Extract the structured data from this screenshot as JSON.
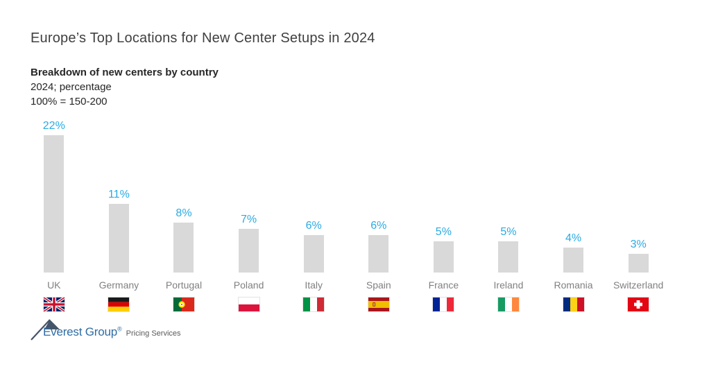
{
  "page": {
    "title": "Europe’s Top Locations for New Center Setups in 2024",
    "subtitle_bold": "Breakdown of new centers by country",
    "subtitle_line2": "2024; percentage",
    "subtitle_line3": "100% = 150-200"
  },
  "chart_data": {
    "type": "bar",
    "title": "Breakdown of new centers by country",
    "subtitle": "2024; percentage, 100% = 150-200",
    "categories": [
      "UK",
      "Germany",
      "Portugal",
      "Poland",
      "Italy",
      "Spain",
      "France",
      "Ireland",
      "Romania",
      "Switzerland"
    ],
    "values": [
      22,
      11,
      8,
      7,
      6,
      6,
      5,
      5,
      4,
      3
    ],
    "value_labels": [
      "22%",
      "11%",
      "8%",
      "7%",
      "6%",
      "6%",
      "5%",
      "5%",
      "4%",
      "3%"
    ],
    "ylim": [
      0,
      24
    ],
    "grid": "off",
    "legend": "none",
    "bar_color": "#D9D9D9",
    "value_label_color": "#29ABE2",
    "category_label_color": "#808080",
    "flags": [
      {
        "icon": "uk-flag",
        "type": "union-jack",
        "colors": {
          "field": "#012169",
          "cross": "#C8102E",
          "fimbriation": "#FFFFFF"
        }
      },
      {
        "icon": "germany-flag",
        "type": "h",
        "stripes": [
          "#1A1A1A",
          "#DD0000",
          "#FFCE00"
        ]
      },
      {
        "icon": "portugal-flag",
        "type": "portugal",
        "colors": {
          "hoist": "#046A38",
          "fly": "#DA291C",
          "emblem": "#FFE900",
          "inner": "#FFFFFF"
        }
      },
      {
        "icon": "poland-flag",
        "type": "h",
        "stripes": [
          "#FFFFFF",
          "#DC143C"
        ]
      },
      {
        "icon": "italy-flag",
        "type": "v",
        "stripes": [
          "#009246",
          "#FFFFFF",
          "#CE2B37"
        ]
      },
      {
        "icon": "spain-flag",
        "type": "spain",
        "colors": {
          "red": "#AA151B",
          "yellow": "#F1BF00",
          "emblem": "#C7A24A"
        }
      },
      {
        "icon": "france-flag",
        "type": "v",
        "stripes": [
          "#002395",
          "#FFFFFF",
          "#ED2939"
        ]
      },
      {
        "icon": "ireland-flag",
        "type": "v",
        "stripes": [
          "#169B62",
          "#FFFFFF",
          "#FF883E"
        ]
      },
      {
        "icon": "romania-flag",
        "type": "v",
        "stripes": [
          "#002B7F",
          "#FCD116",
          "#CE1126"
        ]
      },
      {
        "icon": "switzerland-flag",
        "type": "swiss",
        "colors": {
          "field": "#E30613",
          "cross": "#FFFFFF"
        }
      }
    ]
  },
  "footer": {
    "brand": "Everest Group",
    "registered": "®",
    "suffix": "Pricing Services",
    "brand_color": "#2E6DA4",
    "mark_color": "#44546A"
  }
}
